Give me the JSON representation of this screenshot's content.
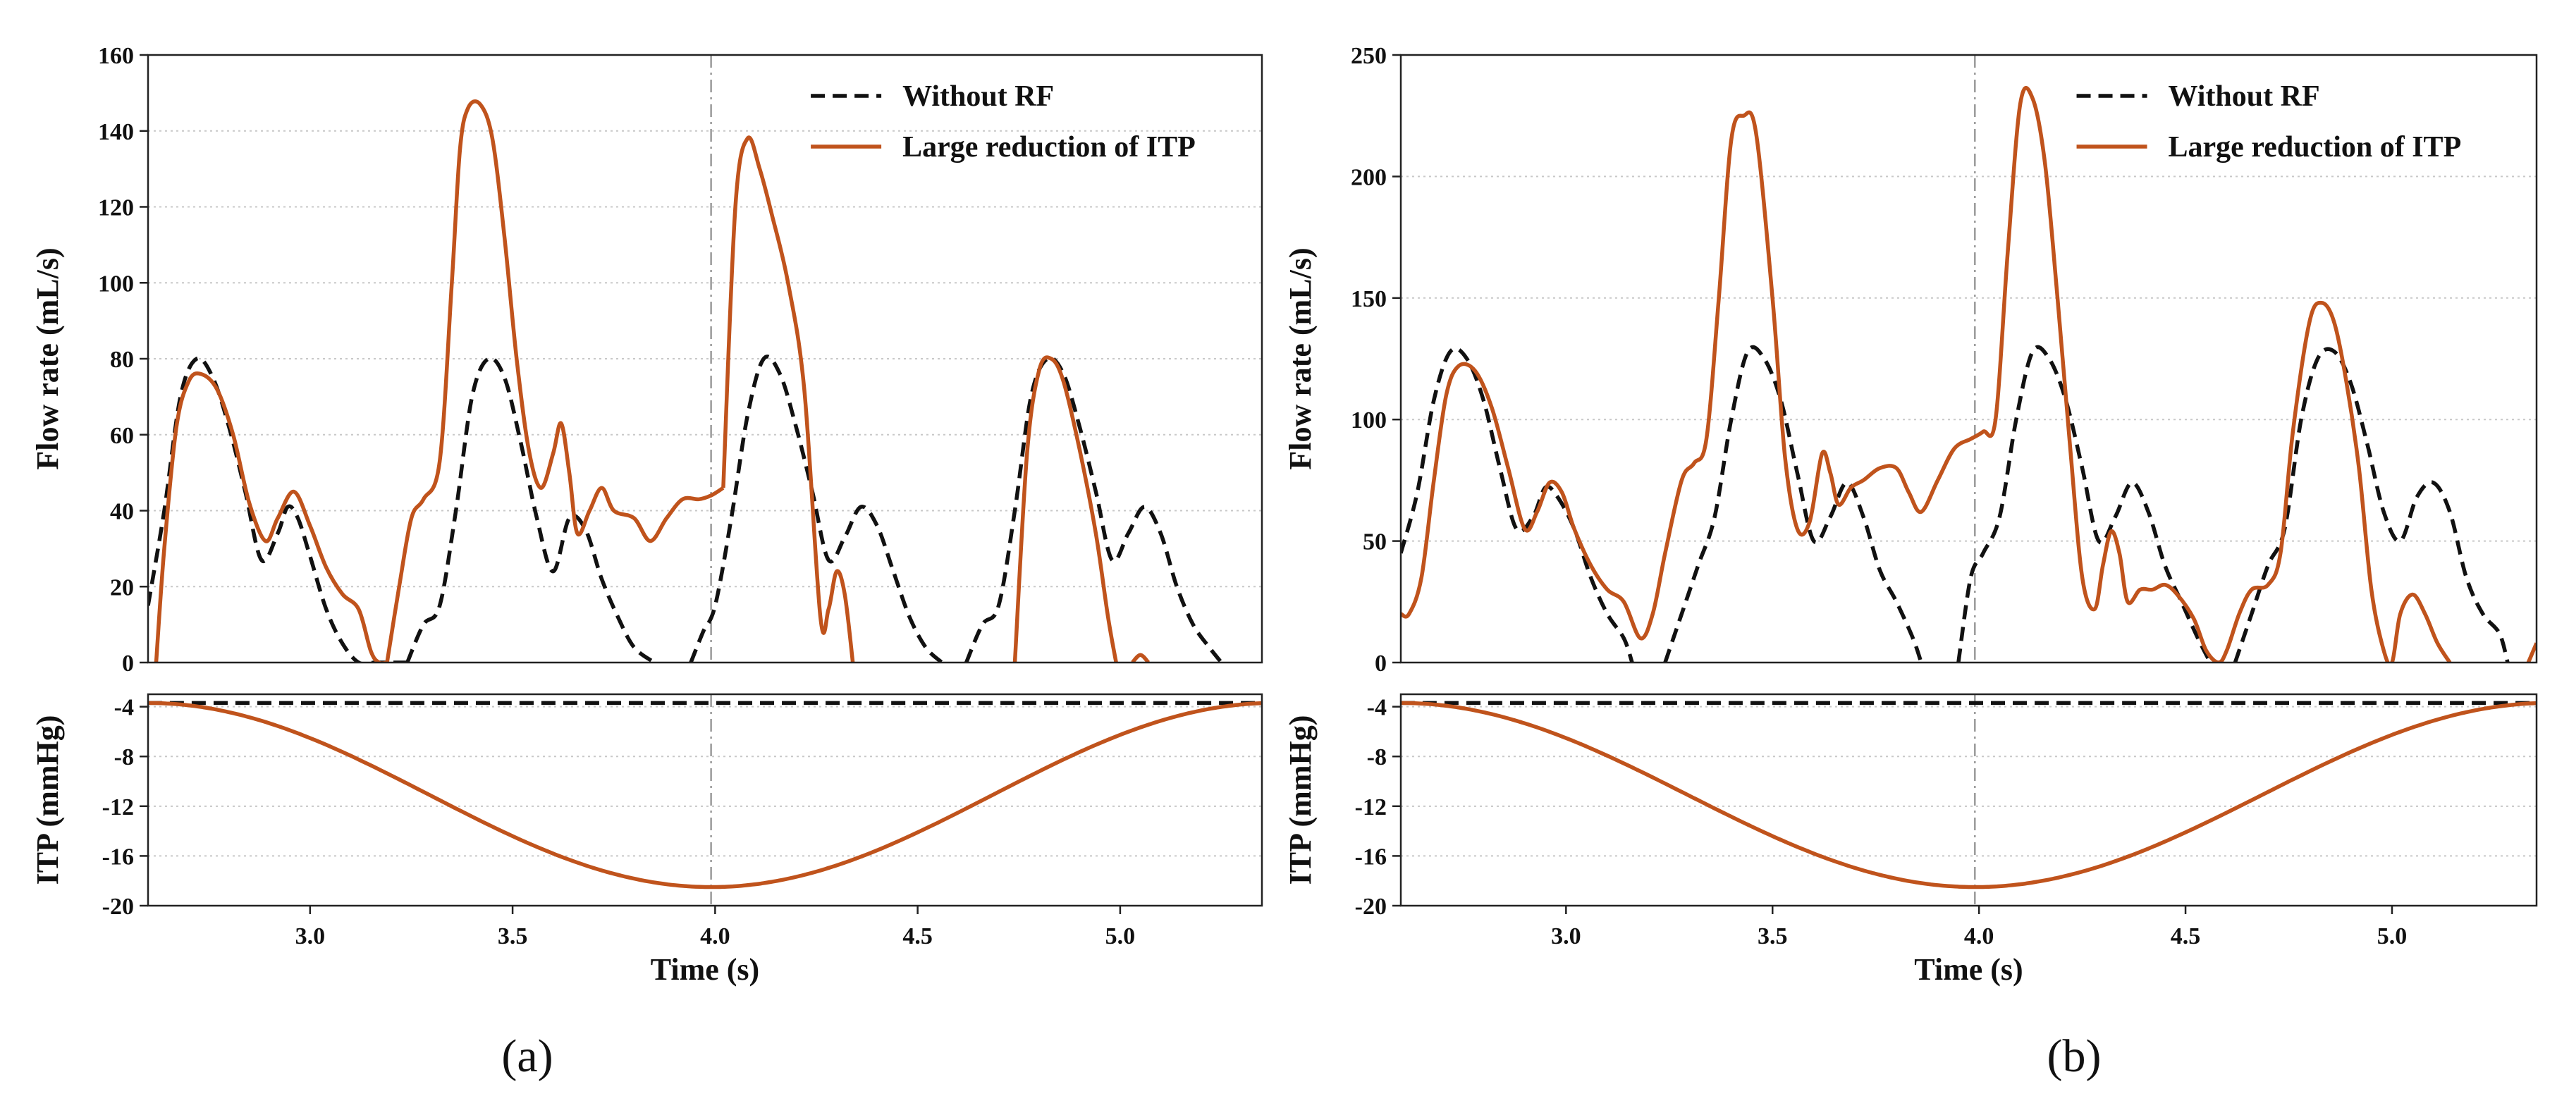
{
  "colors": {
    "without_rf": "#111111",
    "large_reduction": "#c0531c",
    "marker_line": "#9a9a9a"
  },
  "chart_data": [
    {
      "panel_label": "(a)",
      "type": "line",
      "xlabel": "Time (s)",
      "xlim": [
        2.6,
        5.35
      ],
      "xticks": [
        "3.0",
        "3.5",
        "4.0",
        "4.5",
        "5.0"
      ],
      "xtick_values": [
        3.0,
        3.5,
        4.0,
        4.5,
        5.0
      ],
      "vline_x": 3.99,
      "top": {
        "ylabel": "Flow rate (mL/s)",
        "ylim": [
          0,
          160
        ],
        "yticks": [
          "0",
          "20",
          "40",
          "60",
          "80",
          "100",
          "120",
          "140",
          "160"
        ],
        "ytick_values": [
          0,
          20,
          40,
          60,
          80,
          100,
          120,
          140,
          160
        ],
        "legend_position": "top-right",
        "series": [
          {
            "name": "Without RF",
            "style": "dashed",
            "x": [
              2.6,
              2.64,
              2.68,
              2.72,
              2.76,
              2.8,
              2.84,
              2.88,
              2.92,
              2.945,
              2.97,
              3.0,
              3.04,
              3.08,
              3.12,
              3.16,
              3.2,
              3.24
            ],
            "y": [
              15,
              40,
              70,
              80,
              75,
              62,
              45,
              27,
              34,
              41,
              38,
              28,
              14,
              5,
              0,
              0,
              0,
              0
            ],
            "segments_breaks": []
          },
          {
            "name": "Without RF (seg2)",
            "style": "dashed",
            "x": [
              3.24,
              3.28,
              3.32,
              3.36,
              3.4,
              3.44,
              3.48,
              3.52,
              3.56,
              3.6,
              3.64,
              3.68,
              3.72,
              3.76,
              3.8,
              3.85
            ],
            "y": [
              0,
              10,
              15,
              40,
              70,
              80,
              75,
              58,
              38,
              24,
              38,
              35,
              22,
              12,
              4,
              0
            ]
          },
          {
            "name": "Without RF (seg3)",
            "style": "dashed",
            "x": [
              3.94,
              3.97,
              4.0,
              4.04,
              4.08,
              4.12,
              4.16,
              4.2,
              4.24,
              4.28,
              4.32,
              4.36,
              4.4,
              4.44,
              4.48,
              4.52,
              4.56
            ],
            "y": [
              0,
              8,
              15,
              38,
              65,
              80,
              76,
              62,
              45,
              27,
              33,
              41,
              36,
              24,
              12,
              4,
              0
            ]
          },
          {
            "name": "Without RF (seg4)",
            "style": "dashed",
            "x": [
              4.62,
              4.66,
              4.7,
              4.74,
              4.78,
              4.82,
              4.86,
              4.9,
              4.94,
              4.98,
              5.02,
              5.06,
              5.1,
              5.14,
              5.18,
              5.22,
              5.25
            ],
            "y": [
              0,
              10,
              15,
              40,
              70,
              80,
              76,
              62,
              45,
              27,
              34,
              41,
              34,
              20,
              10,
              4,
              0
            ]
          },
          {
            "name": "Large reduction of ITP",
            "style": "solid",
            "x": [
              2.62,
              2.64,
              2.67,
              2.7,
              2.73,
              2.77,
              2.81,
              2.85,
              2.89,
              2.92,
              2.96,
              3.0,
              3.04,
              3.08,
              3.12,
              3.15,
              3.17,
              3.19
            ],
            "y": [
              0,
              30,
              62,
              74,
              76,
              72,
              60,
              42,
              32,
              38,
              45,
              36,
              25,
              18,
              14,
              3,
              0,
              0
            ]
          },
          {
            "name": "Large reduction (seg2)",
            "style": "solid",
            "x": [
              3.19,
              3.22,
              3.25,
              3.28,
              3.32,
              3.35,
              3.37,
              3.39,
              3.42,
              3.45,
              3.48,
              3.51,
              3.54,
              3.57,
              3.6,
              3.62,
              3.64,
              3.66,
              3.69,
              3.72,
              3.75,
              3.8,
              3.84,
              3.88,
              3.92,
              3.96,
              3.99,
              4.02
            ],
            "y": [
              0,
              20,
              38,
              43,
              53,
              100,
              135,
              146,
              147,
              138,
              112,
              80,
              56,
              46,
              55,
              63,
              50,
              34,
              40,
              46,
              40,
              38,
              32,
              38,
              43,
              43,
              44,
              46
            ]
          },
          {
            "name": "Large reduction (seg3)",
            "style": "solid",
            "x": [
              4.02,
              4.05,
              4.08,
              4.11,
              4.14,
              4.18,
              4.22,
              4.26,
              4.28,
              4.3,
              4.32,
              4.34
            ],
            "y": [
              46,
              120,
              138,
              130,
              118,
              100,
              72,
              12,
              14,
              24,
              18,
              0
            ]
          },
          {
            "name": "Large reduction (seg4)",
            "style": "solid",
            "x": [
              4.74,
              4.77,
              4.8,
              4.83,
              4.86,
              4.9,
              4.94,
              4.97,
              4.99
            ],
            "y": [
              0,
              55,
              77,
              80,
              74,
              56,
              34,
              12,
              0
            ]
          },
          {
            "name": "Large reduction (seg5)",
            "style": "solid",
            "x": [
              5.03,
              5.05,
              5.07
            ],
            "y": [
              0,
              2,
              0
            ]
          }
        ]
      },
      "bottom": {
        "ylabel": "ITP (mmHg)",
        "ylim": [
          -20,
          -3
        ],
        "yticks": [
          "-4",
          "-8",
          "-12",
          "-16",
          "-20"
        ],
        "ytick_values": [
          -4,
          -8,
          -12,
          -16,
          -20
        ],
        "series": [
          {
            "name": "Without RF",
            "style": "dashed",
            "x": [
              2.6,
              5.35
            ],
            "y": [
              -3.7,
              -3.7
            ]
          },
          {
            "name": "Large reduction of ITP",
            "style": "solid",
            "formula": "cosine",
            "x_start": 2.6,
            "x_end": 5.35,
            "center": 3.99,
            "y_top": -3.7,
            "y_bottom": -18.5
          }
        ]
      },
      "legend": [
        "Without RF",
        "Large reduction of ITP"
      ]
    },
    {
      "panel_label": "(b)",
      "type": "line",
      "xlabel": "Time (s)",
      "xlim": [
        2.6,
        5.35
      ],
      "xticks": [
        "3.0",
        "3.5",
        "4.0",
        "4.5",
        "5.0"
      ],
      "xtick_values": [
        3.0,
        3.5,
        4.0,
        4.5,
        5.0
      ],
      "vline_x": 3.99,
      "top": {
        "ylabel": "Flow rate (mL/s)",
        "ylim": [
          0,
          250
        ],
        "yticks": [
          "0",
          "50",
          "100",
          "150",
          "200",
          "250"
        ],
        "ytick_values": [
          0,
          50,
          100,
          150,
          200,
          250
        ],
        "legend_position": "top-right",
        "series": [
          {
            "name": "Without RF",
            "style": "dashed",
            "x": [
              2.6,
              2.64,
              2.68,
              2.72,
              2.76,
              2.8,
              2.84,
              2.88,
              2.92,
              2.95,
              2.98,
              3.02,
              3.06,
              3.1,
              3.14,
              3.16
            ],
            "y": [
              45,
              70,
              108,
              128,
              125,
              108,
              80,
              55,
              60,
              72,
              68,
              55,
              35,
              20,
              10,
              0
            ]
          },
          {
            "name": "Without RF (seg2)",
            "style": "dashed",
            "x": [
              3.24,
              3.28,
              3.32,
              3.36,
              3.4,
              3.44,
              3.48,
              3.52,
              3.56,
              3.6,
              3.64,
              3.68,
              3.72,
              3.76,
              3.8,
              3.84,
              3.86
            ],
            "y": [
              0,
              20,
              40,
              60,
              100,
              128,
              125,
              108,
              78,
              50,
              60,
              74,
              60,
              38,
              25,
              10,
              0
            ]
          },
          {
            "name": "Without RF (seg3)",
            "style": "dashed",
            "x": [
              3.95,
              3.98,
              4.01,
              4.05,
              4.09,
              4.13,
              4.17,
              4.21,
              4.25,
              4.29,
              4.33,
              4.37,
              4.41,
              4.45,
              4.49,
              4.53,
              4.56
            ],
            "y": [
              0,
              35,
              45,
              60,
              100,
              128,
              125,
              108,
              80,
              50,
              60,
              74,
              62,
              40,
              25,
              10,
              0
            ]
          },
          {
            "name": "Without RF (seg4)",
            "style": "dashed",
            "x": [
              4.62,
              4.66,
              4.7,
              4.74,
              4.78,
              4.82,
              4.86,
              4.9,
              4.94,
              4.98,
              5.02,
              5.06,
              5.1,
              5.14,
              5.18,
              5.22,
              5.26,
              5.28
            ],
            "y": [
              0,
              20,
              40,
              55,
              100,
              125,
              128,
              115,
              90,
              62,
              50,
              68,
              74,
              62,
              35,
              20,
              12,
              0
            ]
          },
          {
            "name": "Large reduction of ITP",
            "style": "solid",
            "x": [
              2.6,
              2.62,
              2.65,
              2.68,
              2.71,
              2.74,
              2.78,
              2.82,
              2.86,
              2.9,
              2.93,
              2.96,
              2.99,
              3.02,
              3.06,
              3.1,
              3.14,
              3.18,
              3.21,
              3.24,
              3.28,
              3.31,
              3.34,
              3.37,
              3.4,
              3.43,
              3.46,
              3.5,
              3.53,
              3.56,
              3.59,
              3.62,
              3.64,
              3.66,
              3.69,
              3.72,
              3.76,
              3.8,
              3.83,
              3.86,
              3.9,
              3.94,
              3.98,
              4.01,
              4.04,
              4.07,
              4.1,
              4.13,
              4.16,
              4.19,
              4.22,
              4.25,
              4.28,
              4.3,
              4.32,
              4.34,
              4.36,
              4.39,
              4.42,
              4.45,
              4.48,
              4.52,
              4.55,
              4.58,
              4.6,
              4.63,
              4.66,
              4.7,
              4.73,
              4.76,
              4.8,
              4.83,
              4.86,
              4.89,
              4.92,
              4.95,
              4.98,
              5.0,
              5.02,
              5.05,
              5.08,
              5.11,
              5.14
            ],
            "y": [
              20,
              20,
              35,
              75,
              110,
              122,
              120,
              105,
              80,
              55,
              62,
              74,
              70,
              55,
              40,
              30,
              25,
              10,
              20,
              45,
              75,
              82,
              92,
              150,
              215,
              225,
              218,
              150,
              85,
              55,
              58,
              86,
              78,
              65,
              72,
              75,
              80,
              80,
              70,
              62,
              75,
              88,
              92,
              95,
              100,
              170,
              230,
              232,
              205,
              150,
              90,
              35,
              22,
              40,
              54,
              45,
              25,
              30,
              30,
              32,
              28,
              18,
              5,
              0,
              5,
              20,
              30,
              32,
              45,
              95,
              140,
              148,
              140,
              115,
              80,
              30,
              5,
              0,
              20,
              28,
              20,
              8,
              0
            ]
          },
          {
            "name": "Large reduction (tail)",
            "style": "solid",
            "x": [
              5.33,
              5.35
            ],
            "y": [
              0,
              8
            ]
          }
        ]
      },
      "bottom": {
        "ylabel": "ITP (mmHg)",
        "ylim": [
          -20,
          -3
        ],
        "yticks": [
          "-4",
          "-8",
          "-12",
          "-16",
          "-20"
        ],
        "ytick_values": [
          -4,
          -8,
          -12,
          -16,
          -20
        ],
        "series": [
          {
            "name": "Without RF",
            "style": "dashed",
            "x": [
              2.6,
              5.35
            ],
            "y": [
              -3.7,
              -3.7
            ]
          },
          {
            "name": "Large reduction of ITP",
            "style": "solid",
            "formula": "cosine",
            "x_start": 2.6,
            "x_end": 5.35,
            "center": 3.99,
            "y_top": -3.7,
            "y_bottom": -18.5
          }
        ]
      },
      "legend": [
        "Without RF",
        "Large reduction of ITP"
      ]
    }
  ]
}
